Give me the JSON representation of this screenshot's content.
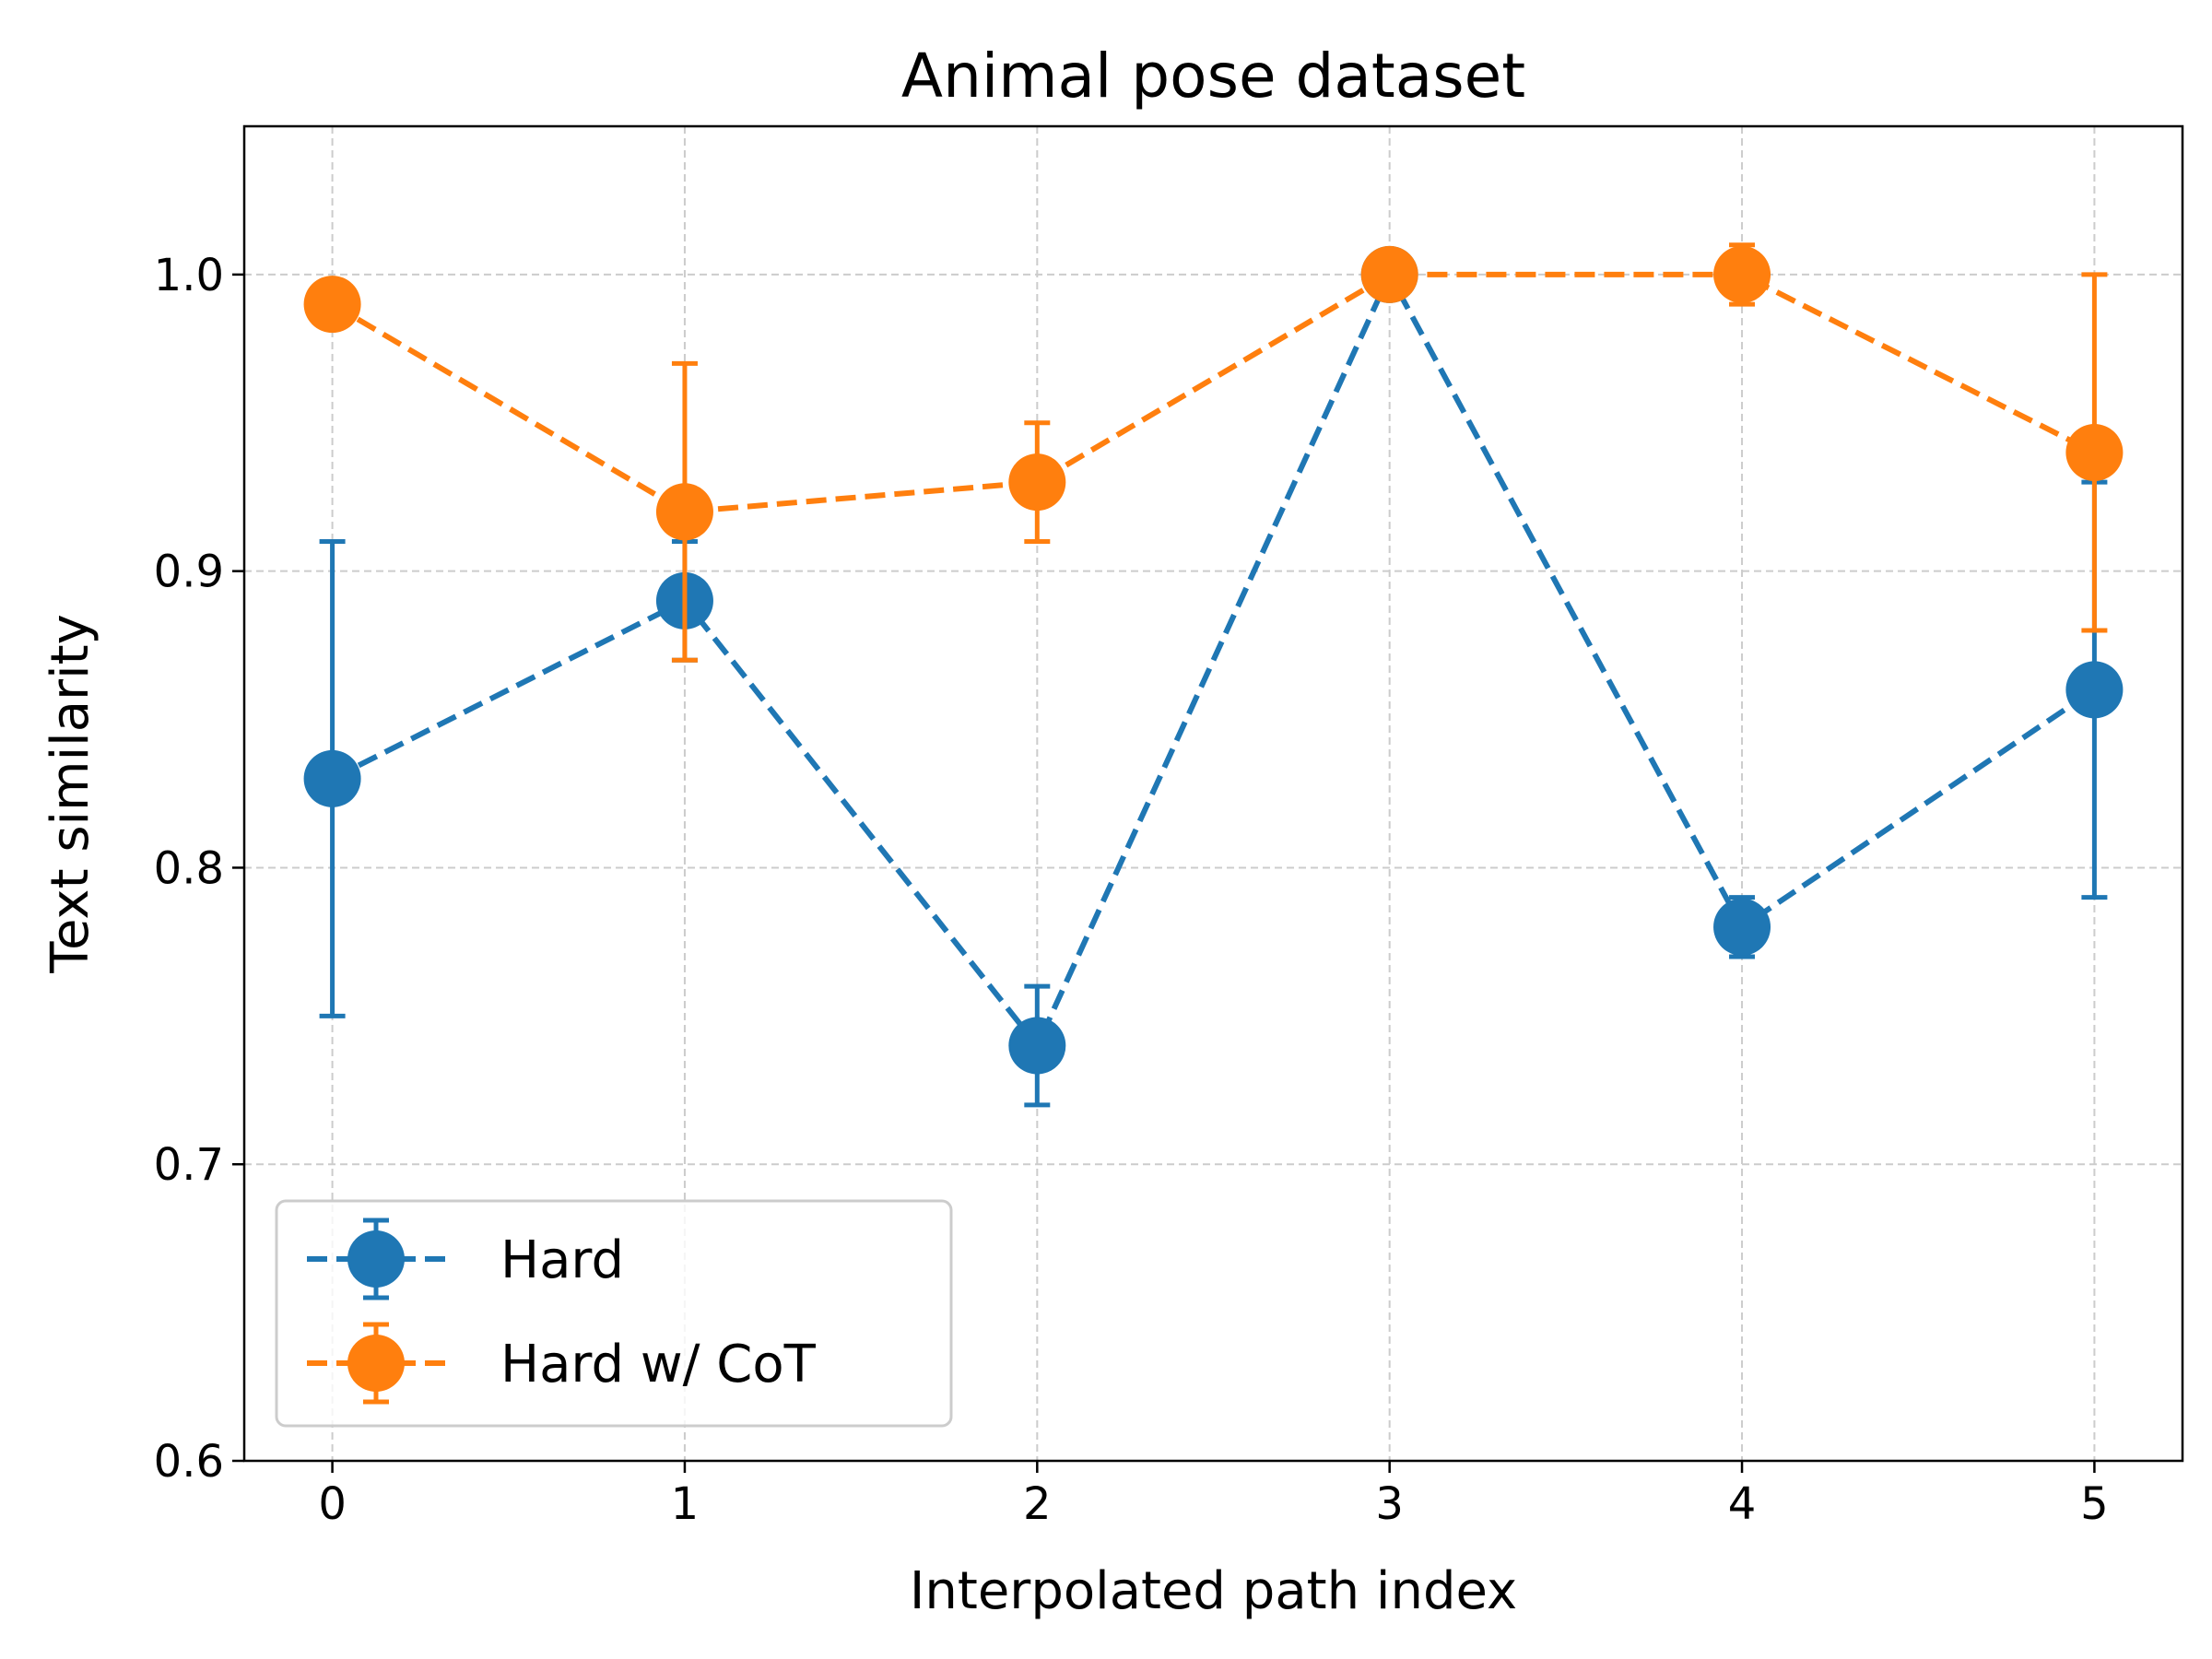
{
  "chart_data": {
    "type": "line",
    "title": "Animal pose dataset",
    "xlabel": "Interpolated path index",
    "ylabel": "Text similarity",
    "x": [
      0,
      1,
      2,
      3,
      4,
      5
    ],
    "xlim": [
      -0.25,
      5.25
    ],
    "ylim": [
      0.6,
      1.05
    ],
    "xticks": [
      "0",
      "1",
      "2",
      "3",
      "4",
      "5"
    ],
    "yticks": [
      "0.6",
      "0.7",
      "0.8",
      "0.9",
      "1.0"
    ],
    "grid": true,
    "legend_position": "lower-left",
    "series": [
      {
        "name": "Hard",
        "color": "#1f77b4",
        "values": [
          0.83,
          0.89,
          0.74,
          1.0,
          0.78,
          0.86
        ],
        "err_low": [
          0.75,
          0.87,
          0.72,
          1.0,
          0.77,
          0.79
        ],
        "err_high": [
          0.91,
          0.91,
          0.76,
          1.0,
          0.79,
          0.93
        ]
      },
      {
        "name": "Hard w/ CoT",
        "color": "#ff7f0e",
        "values": [
          0.99,
          0.92,
          0.93,
          1.0,
          1.0,
          0.94
        ],
        "err_low": [
          0.99,
          0.87,
          0.91,
          1.0,
          0.99,
          0.88
        ],
        "err_high": [
          0.99,
          0.97,
          0.95,
          1.0,
          1.01,
          1.0
        ]
      }
    ]
  }
}
